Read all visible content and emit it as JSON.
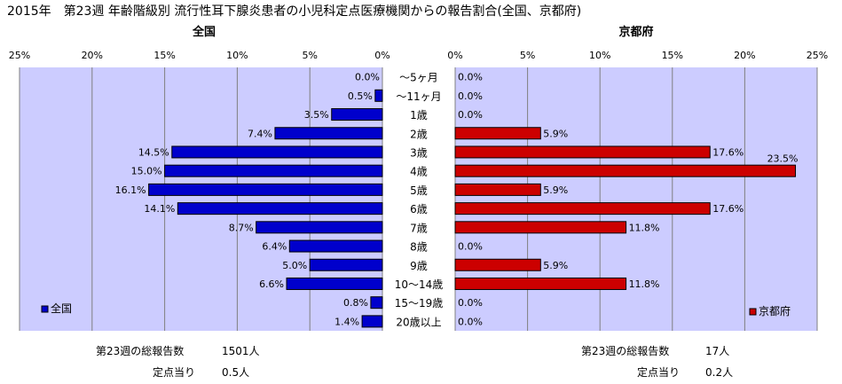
{
  "title": "2015年　第23週 年齢階級別 流行性耳下腺炎患者の小児科定点医療機関からの報告割合(全国、京都府)",
  "colors": {
    "plot_bg": "#ccccff",
    "zenkoku_bar": "#0000cc",
    "kyoto_bar": "#cc0000",
    "grid": "#808080"
  },
  "chart_data": [
    {
      "type": "bar",
      "orientation": "horizontal",
      "direction": "right-to-left",
      "title": "全国",
      "categories": [
        "～5ヶ月",
        "～11ヶ月",
        "1歳",
        "2歳",
        "3歳",
        "4歳",
        "5歳",
        "6歳",
        "7歳",
        "8歳",
        "9歳",
        "10～14歳",
        "15～19歳",
        "20歳以上"
      ],
      "series": [
        {
          "name": "全国",
          "values": [
            0.0,
            0.5,
            3.5,
            7.4,
            14.5,
            15.0,
            16.1,
            14.1,
            8.7,
            6.4,
            5.0,
            6.6,
            0.8,
            1.4
          ]
        }
      ],
      "data_labels": [
        "0.0%",
        "0.5%",
        "3.5%",
        "7.4%",
        "14.5%",
        "15.0%",
        "16.1%",
        "14.1%",
        "8.7%",
        "6.4%",
        "5.0%",
        "6.6%",
        "0.8%",
        "1.4%"
      ],
      "xlim": [
        0,
        25
      ],
      "tick_labels": [
        "25%",
        "20%",
        "15%",
        "10%",
        "5%",
        "0%"
      ],
      "grid": true,
      "legend_placement": "bottom-left"
    },
    {
      "type": "bar",
      "orientation": "horizontal",
      "direction": "left-to-right",
      "title": "京都府",
      "categories": [
        "～5ヶ月",
        "～11ヶ月",
        "1歳",
        "2歳",
        "3歳",
        "4歳",
        "5歳",
        "6歳",
        "7歳",
        "8歳",
        "9歳",
        "10～14歳",
        "15～19歳",
        "20歳以上"
      ],
      "series": [
        {
          "name": "京都府",
          "values": [
            0.0,
            0.0,
            0.0,
            5.9,
            17.6,
            23.5,
            5.9,
            17.6,
            11.8,
            0.0,
            5.9,
            11.8,
            0.0,
            0.0
          ]
        }
      ],
      "data_labels": [
        "0.0%",
        "0.0%",
        "0.0%",
        "5.9%",
        "17.6%",
        "23.5%",
        "5.9%",
        "17.6%",
        "11.8%",
        "0.0%",
        "5.9%",
        "11.8%",
        "0.0%",
        "0.0%"
      ],
      "xlim": [
        0,
        25
      ],
      "tick_labels": [
        "0%",
        "5%",
        "10%",
        "15%",
        "20%",
        "25%"
      ],
      "grid": true,
      "legend_placement": "bottom-right"
    }
  ],
  "footer": {
    "zenkoku": {
      "total_label": "第23週の総報告数",
      "total_value": "1501人",
      "per_label": "定点当り",
      "per_value": "0.5人"
    },
    "kyoto": {
      "total_label": "第23週の総報告数",
      "total_value": "17人",
      "per_label": "定点当り",
      "per_value": "0.2人"
    }
  }
}
